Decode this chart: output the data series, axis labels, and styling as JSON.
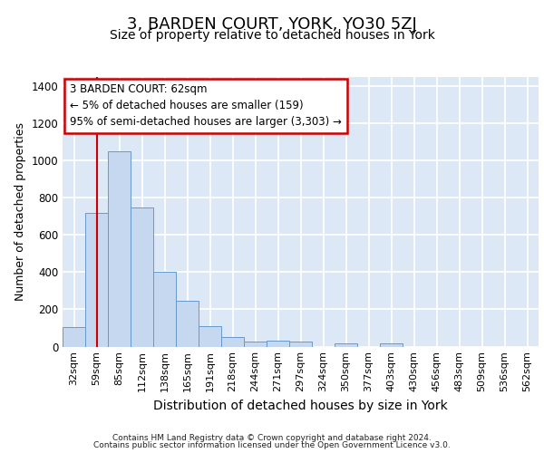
{
  "title": "3, BARDEN COURT, YORK, YO30 5ZJ",
  "subtitle": "Size of property relative to detached houses in York",
  "xlabel": "Distribution of detached houses by size in York",
  "ylabel": "Number of detached properties",
  "footer_line1": "Contains HM Land Registry data © Crown copyright and database right 2024.",
  "footer_line2": "Contains public sector information licensed under the Open Government Licence v3.0.",
  "annotation_title": "3 BARDEN COURT: 62sqm",
  "annotation_line1": "← 5% of detached houses are smaller (159)",
  "annotation_line2": "95% of semi-detached houses are larger (3,303) →",
  "bar_labels": [
    "32sqm",
    "59sqm",
    "85sqm",
    "112sqm",
    "138sqm",
    "165sqm",
    "191sqm",
    "218sqm",
    "244sqm",
    "271sqm",
    "297sqm",
    "324sqm",
    "350sqm",
    "377sqm",
    "403sqm",
    "430sqm",
    "456sqm",
    "483sqm",
    "509sqm",
    "536sqm",
    "562sqm"
  ],
  "bar_values": [
    105,
    720,
    1050,
    750,
    400,
    245,
    110,
    50,
    25,
    30,
    25,
    0,
    15,
    0,
    15,
    0,
    0,
    0,
    0,
    0,
    0
  ],
  "bar_color": "#c5d8f0",
  "bar_edge_color": "#6699cc",
  "red_line_color": "#cc0000",
  "red_line_x": 1,
  "ylim": [
    0,
    1450
  ],
  "yticks": [
    0,
    200,
    400,
    600,
    800,
    1000,
    1200,
    1400
  ],
  "bg_color": "#dce8f5",
  "grid_color": "#ffffff",
  "ann_bg": "#ffffff",
  "ann_edge": "#cc0000",
  "title_fontsize": 13,
  "subtitle_fontsize": 10,
  "ylabel_fontsize": 9,
  "xlabel_fontsize": 10,
  "tick_fontsize": 8,
  "footer_fontsize": 6.5,
  "ann_fontsize": 8.5
}
